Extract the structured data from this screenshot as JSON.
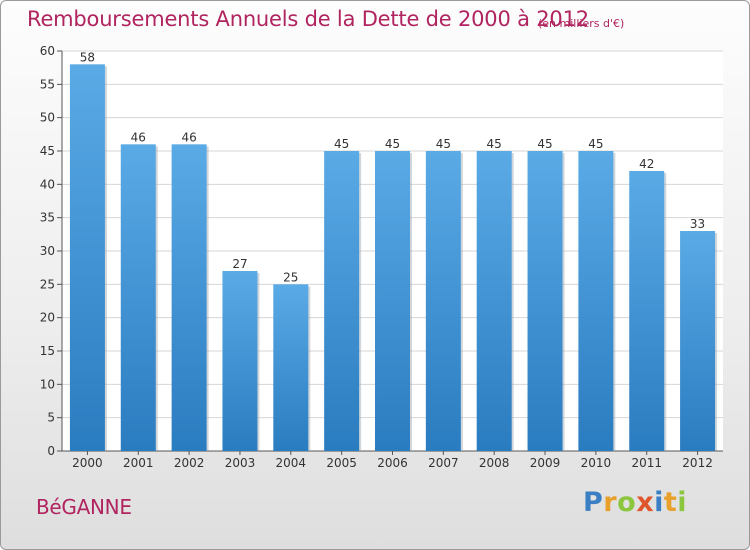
{
  "header": {
    "title": "Remboursements Annuels de la Dette de 2000 à 2012",
    "subtitle": "(en milliers d'€)"
  },
  "footer": {
    "commune": "BéGANNE",
    "logo": "Proxiti"
  },
  "colors": {
    "accent": "#b0245f",
    "bar_light": "#5aaae6",
    "bar_dark": "#2a7cc0"
  },
  "chart_data": {
    "type": "bar",
    "title": "Remboursements Annuels de la Dette de 2000 à 2012",
    "subtitle": "(en milliers d'€)",
    "categories": [
      "2000",
      "2001",
      "2002",
      "2003",
      "2004",
      "2005",
      "2006",
      "2007",
      "2008",
      "2009",
      "2010",
      "2011",
      "2012"
    ],
    "values": [
      58,
      46,
      46,
      27,
      25,
      45,
      45,
      45,
      45,
      45,
      45,
      42,
      33
    ],
    "ylim": [
      0,
      60
    ],
    "yticks": [
      0,
      5,
      10,
      15,
      20,
      25,
      30,
      35,
      40,
      45,
      50,
      55,
      60
    ],
    "xlabel": "",
    "ylabel": "",
    "grid": true,
    "data_labels": true
  }
}
